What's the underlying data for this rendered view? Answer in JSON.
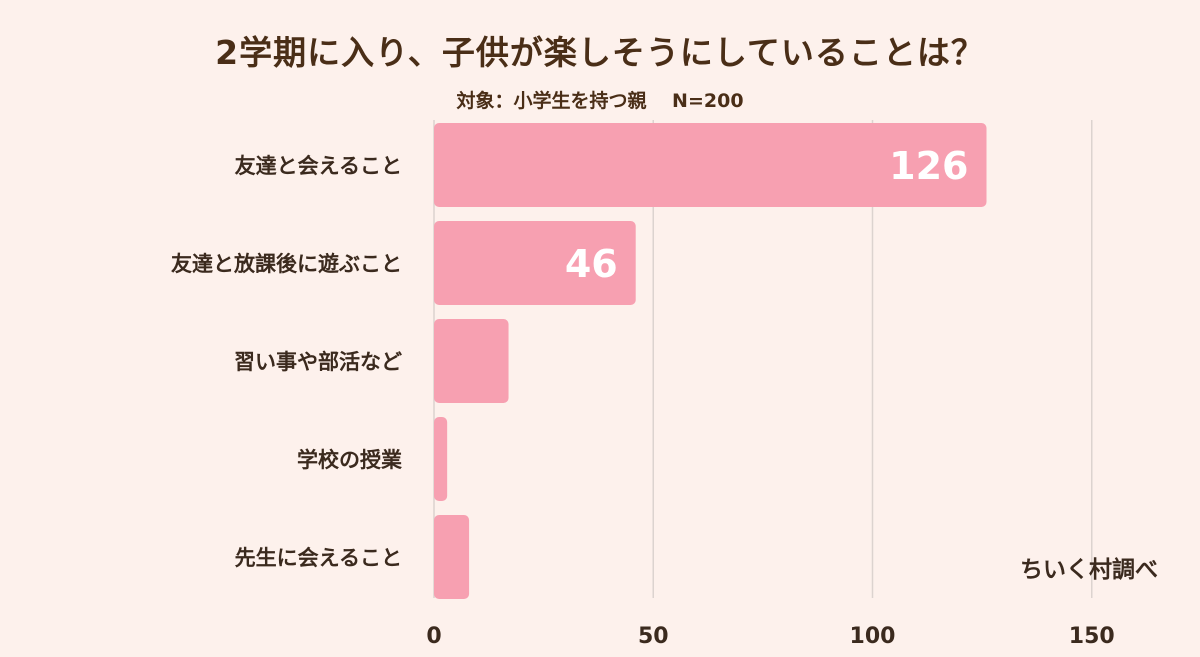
{
  "title": "2学期に入り、子供が楽しそうにしていることは？",
  "subtitle": "対象：小学生を持つ親　 N=200",
  "credit": "ちいく村調べ",
  "colors": {
    "bar": "#f7a0b1",
    "grid": "#dcd3cf",
    "background": "#fdf1ec"
  },
  "chart_data": {
    "type": "bar",
    "orientation": "horizontal",
    "categories": [
      "友達と会えること",
      "友達と放課後に遊ぶこと",
      "習い事や部活など",
      "学校の授業",
      "先生に会えること"
    ],
    "values": [
      126,
      46,
      17,
      3,
      8
    ],
    "data_labels": [
      "126",
      "46",
      "",
      "",
      ""
    ],
    "xlim": [
      0,
      150
    ],
    "xticks": [
      0,
      50,
      100,
      150
    ],
    "grid": true
  }
}
